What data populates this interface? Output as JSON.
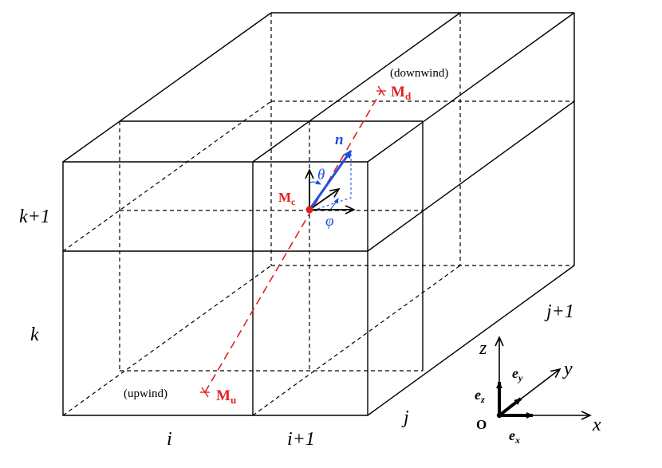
{
  "grid_labels": {
    "i": "i",
    "i_plus_1": "i+1",
    "j": "j",
    "j_plus_1": "j+1",
    "k": "k",
    "k_plus_1": "k+1"
  },
  "points": {
    "center": {
      "main": "M",
      "sub": "c"
    },
    "downwind": {
      "main": "M",
      "sub": "d",
      "note": "(downwind)"
    },
    "upwind": {
      "main": "M",
      "sub": "u",
      "note": "(upwind)"
    }
  },
  "direction": {
    "vector": "n",
    "polar_angle": "θ",
    "azimuth_angle": "φ"
  },
  "frame": {
    "origin": "O",
    "axis_x": "x",
    "axis_y": "y",
    "axis_z": "z",
    "unit_x": {
      "main": "e",
      "sub": "x"
    },
    "unit_y": {
      "main": "e",
      "sub": "y"
    },
    "unit_z": {
      "main": "e",
      "sub": "z"
    }
  },
  "colors": {
    "lines": "#000000",
    "ray": "#e02020",
    "vector": "#1f4fe0",
    "points": "#e02020"
  }
}
